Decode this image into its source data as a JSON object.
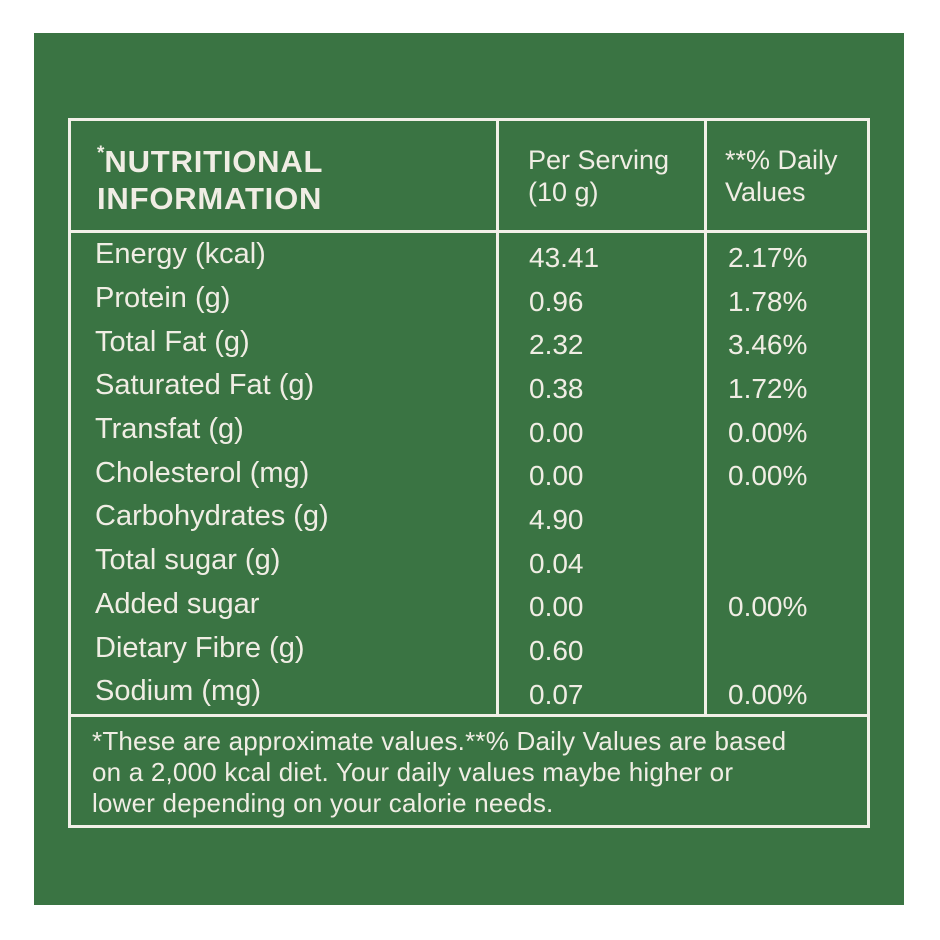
{
  "colors": {
    "panel_green": "#3A7443",
    "text_off_white": "#F0EDE4",
    "border_off_white": "#F2F0E8",
    "page_background": "#FFFFFF"
  },
  "table": {
    "header": {
      "title_mark": "*",
      "title_line1": "NUTRITIONAL",
      "title_line2": "INFORMATION",
      "col2_line1": "Per Serving",
      "col2_line2": "(10 g)",
      "col3_line1": "**% Daily",
      "col3_line2": "Values"
    },
    "rows": [
      {
        "label": "Energy (kcal)",
        "per_serving": "43.41",
        "daily_value": "2.17%"
      },
      {
        "label": "Protein (g)",
        "per_serving": "0.96",
        "daily_value": "1.78%"
      },
      {
        "label": "Total Fat (g)",
        "per_serving": "2.32",
        "daily_value": "3.46%"
      },
      {
        "label": "Saturated Fat (g)",
        "per_serving": "0.38",
        "daily_value": "1.72%"
      },
      {
        "label": "Transfat (g)",
        "per_serving": "0.00",
        "daily_value": "0.00%"
      },
      {
        "label": "Cholesterol (mg)",
        "per_serving": "0.00",
        "daily_value": "0.00%"
      },
      {
        "label": "Carbohydrates (g)",
        "per_serving": "4.90",
        "daily_value": ""
      },
      {
        "label": "Total sugar (g)",
        "per_serving": "0.04",
        "daily_value": ""
      },
      {
        "label": "Added sugar",
        "per_serving": "0.00",
        "daily_value": "0.00%"
      },
      {
        "label": "Dietary Fibre (g)",
        "per_serving": "0.60",
        "daily_value": ""
      },
      {
        "label": "Sodium (mg)",
        "per_serving": "0.07",
        "daily_value": "0.00%"
      }
    ],
    "footnote_lines": [
      "*These are approximate values.**% Daily Values are based",
      "on a 2,000 kcal diet. Your daily values maybe higher or",
      "lower depending on your calorie needs."
    ]
  }
}
